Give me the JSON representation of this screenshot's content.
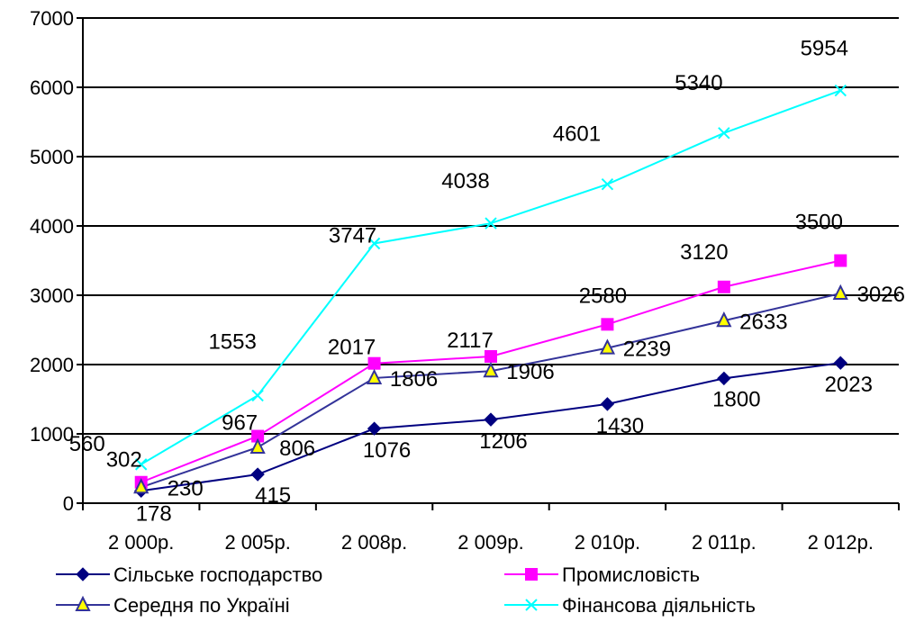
{
  "chart_data": {
    "type": "line",
    "categories": [
      "2 000р.",
      "2 005р.",
      "2 008р.",
      "2 009р.",
      "2 010р.",
      "2 011р.",
      "2 012р."
    ],
    "ylim": [
      0,
      7000
    ],
    "yticks": [
      0,
      1000,
      2000,
      3000,
      4000,
      5000,
      6000,
      7000
    ],
    "grid": true,
    "legend_position": "bottom",
    "series": [
      {
        "name": "Сільське господарство",
        "color": "#000080",
        "marker": "diamond",
        "values": [
          178,
          415,
          1076,
          1206,
          1430,
          1800,
          2023
        ],
        "labels": [
          "178",
          "415",
          "1076",
          "1206",
          "1430",
          "1800",
          "2023"
        ]
      },
      {
        "name": "Промисловість",
        "color": "#FF00FF",
        "marker": "square",
        "values": [
          302,
          967,
          2017,
          2117,
          2580,
          3120,
          3500
        ],
        "labels": [
          "302",
          "967",
          "2017",
          "2117",
          "2580",
          "3120",
          "3500"
        ]
      },
      {
        "name": "Середня по Україні",
        "color": "#333399",
        "marker": "triangle",
        "values": [
          230,
          806,
          1806,
          1906,
          2239,
          2633,
          3026
        ],
        "labels": [
          "230",
          "806",
          "1806",
          "1906",
          "2239",
          "2633",
          "3026"
        ]
      },
      {
        "name": "Фінансова діяльність",
        "color": "#00FFFF",
        "marker": "x",
        "values": [
          560,
          1553,
          3747,
          4038,
          4601,
          5340,
          5954
        ],
        "labels": [
          "560",
          "1553",
          "3747",
          "4038",
          "4601",
          "5340",
          "5954"
        ]
      }
    ]
  }
}
